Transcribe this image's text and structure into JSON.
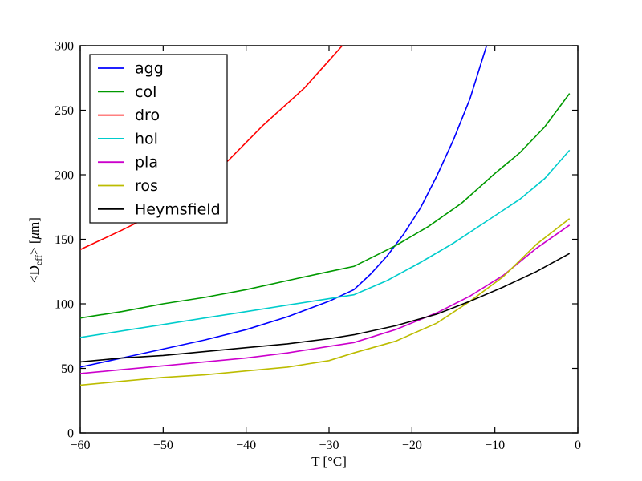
{
  "figure": {
    "background": "#ffffff",
    "frame_color": "#000000"
  },
  "chart_data": {
    "type": "line",
    "title": "",
    "xlabel": "T [°C]",
    "ylabel": "<Deff> [μm]",
    "ylabel_parts": {
      "pre": "<D",
      "sub": "eff",
      "post": "> [",
      "mu": "μ",
      "end": "m]"
    },
    "xlim": [
      -60,
      0
    ],
    "ylim": [
      0,
      300
    ],
    "grid": false,
    "legend_position": "upper-left",
    "x_ticks": {
      "values": [
        -60,
        -50,
        -40,
        -30,
        -20,
        -10,
        0
      ],
      "labels": [
        "−60",
        "−50",
        "−40",
        "−30",
        "−20",
        "−10",
        "0"
      ]
    },
    "y_ticks": {
      "values": [
        0,
        50,
        100,
        150,
        200,
        250,
        300
      ],
      "labels": [
        "0",
        "50",
        "100",
        "150",
        "200",
        "250",
        "300"
      ]
    },
    "series": [
      {
        "name": "agg",
        "color": "#0000ff",
        "x": [
          -60,
          -55,
          -50,
          -45,
          -40,
          -35,
          -30,
          -27,
          -25,
          -23,
          -21,
          -19,
          -17,
          -15,
          -13,
          -11
        ],
        "y": [
          51,
          58,
          65,
          72,
          80,
          90,
          102,
          111,
          123,
          137,
          154,
          174,
          199,
          227,
          259,
          300
        ]
      },
      {
        "name": "col",
        "color": "#009900",
        "x": [
          -60,
          -55,
          -50,
          -45,
          -40,
          -35,
          -30,
          -27,
          -22,
          -18,
          -14,
          -10,
          -7,
          -4,
          -1
        ],
        "y": [
          89,
          94,
          100,
          105,
          111,
          118,
          125,
          129,
          145,
          160,
          178,
          201,
          217,
          237,
          263
        ]
      },
      {
        "name": "dro",
        "color": "#ff0000",
        "x": [
          -60,
          -55,
          -50,
          -46,
          -42,
          -38,
          -33,
          -28.4
        ],
        "y": [
          142,
          157,
          173,
          189,
          212,
          238,
          267,
          300
        ]
      },
      {
        "name": "hol",
        "color": "#00cccc",
        "x": [
          -60,
          -55,
          -50,
          -45,
          -40,
          -35,
          -30,
          -27,
          -23,
          -19,
          -15,
          -11,
          -7,
          -4,
          -1
        ],
        "y": [
          74,
          79,
          84,
          89,
          94,
          99,
          104,
          107,
          118,
          132,
          147,
          164,
          181,
          197,
          219
        ]
      },
      {
        "name": "pla",
        "color": "#cc00cc",
        "x": [
          -60,
          -55,
          -50,
          -45,
          -40,
          -35,
          -30,
          -27,
          -22,
          -17,
          -13,
          -9,
          -5,
          -1
        ],
        "y": [
          46,
          49,
          52,
          55,
          58,
          62,
          67,
          70,
          80,
          93,
          106,
          122,
          143,
          161
        ]
      },
      {
        "name": "ros",
        "color": "#bcbc00",
        "x": [
          -60,
          -55,
          -50,
          -45,
          -40,
          -35,
          -30,
          -27,
          -22,
          -17,
          -13,
          -9,
          -5,
          -1
        ],
        "y": [
          37,
          40,
          43,
          45,
          48,
          51,
          56,
          62,
          71,
          85,
          102,
          121,
          146,
          166
        ]
      },
      {
        "name": "Heymsfield",
        "color": "#000000",
        "x": [
          -60,
          -55,
          -50,
          -45,
          -40,
          -35,
          -30,
          -27,
          -22,
          -17,
          -13,
          -9,
          -5,
          -1
        ],
        "y": [
          55,
          58,
          60,
          63,
          66,
          69,
          73,
          76,
          83,
          92,
          102,
          113,
          125,
          139
        ]
      }
    ]
  },
  "legend": {
    "items": [
      {
        "label": "agg",
        "color": "#0000ff"
      },
      {
        "label": "col",
        "color": "#009900"
      },
      {
        "label": "dro",
        "color": "#ff0000"
      },
      {
        "label": "hol",
        "color": "#00cccc"
      },
      {
        "label": "pla",
        "color": "#cc00cc"
      },
      {
        "label": "ros",
        "color": "#bcbc00"
      },
      {
        "label": "Heymsfield",
        "color": "#000000"
      }
    ]
  }
}
